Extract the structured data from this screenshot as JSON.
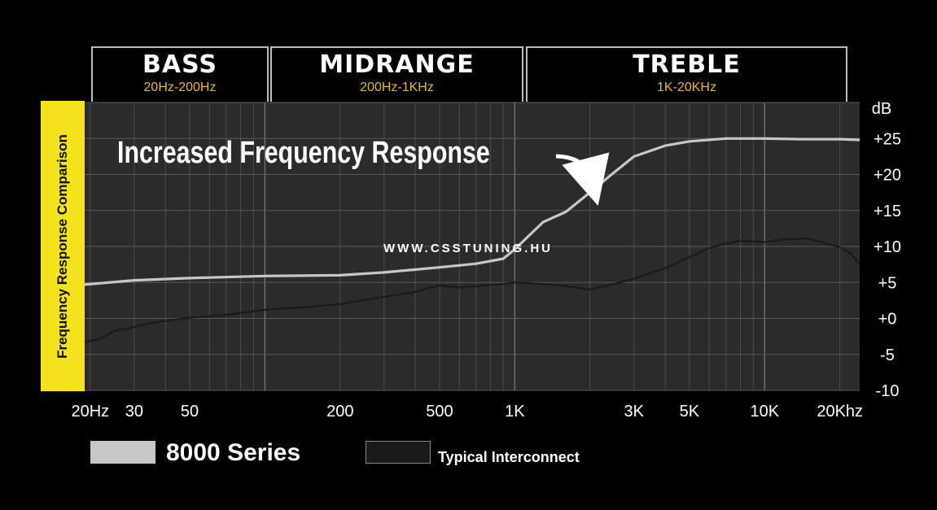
{
  "bands": [
    {
      "title": "BASS",
      "range": "20Hz-200Hz"
    },
    {
      "title": "MIDRANGE",
      "range": "200Hz-1KHz"
    },
    {
      "title": "TREBLE",
      "range": "1K-20KHz"
    }
  ],
  "side_label": "Frequency Response Comparison",
  "watermark": "WWW.CSSTUNING.HU",
  "colors": {
    "background": "#000000",
    "plot_bg": "#2b2b2b",
    "grid": "#5a5a5a",
    "series_8000": "#c7c7c7",
    "series_typical": "#1a1a1a",
    "side_label_bg": "#f3e21c",
    "band_range": "#e7b82c"
  },
  "chart_data": {
    "type": "line",
    "annotation": "Increased Frequency Response",
    "y_unit": "dB",
    "x_scale": "log",
    "xlim": [
      19,
      24000
    ],
    "ylim": [
      -10,
      30
    ],
    "grid": true,
    "xticks": [
      {
        "value": 20,
        "label": "20Hz"
      },
      {
        "value": 30,
        "label": "30"
      },
      {
        "value": 50,
        "label": "50"
      },
      {
        "value": 200,
        "label": "200"
      },
      {
        "value": 500,
        "label": "500"
      },
      {
        "value": 1000,
        "label": "1K"
      },
      {
        "value": 3000,
        "label": "3K"
      },
      {
        "value": 5000,
        "label": "5K"
      },
      {
        "value": 10000,
        "label": "10K"
      },
      {
        "value": 20000,
        "label": "20Khz"
      }
    ],
    "yticks": [
      {
        "value": 25,
        "label": "+25"
      },
      {
        "value": 20,
        "label": "+20"
      },
      {
        "value": 15,
        "label": "+15"
      },
      {
        "value": 10,
        "label": "+10"
      },
      {
        "value": 5,
        "label": "+5"
      },
      {
        "value": 0,
        "label": "+0"
      },
      {
        "value": -5,
        "label": "-5"
      },
      {
        "value": -10,
        "label": "-10"
      }
    ],
    "series": [
      {
        "name": "8000 Series",
        "x": [
          19,
          30,
          50,
          100,
          200,
          300,
          500,
          700,
          900,
          1000,
          1300,
          1600,
          2000,
          2500,
          3000,
          4000,
          5000,
          7000,
          10000,
          14000,
          20000,
          24000
        ],
        "y": [
          4.7,
          5.3,
          5.6,
          5.9,
          6.0,
          6.4,
          7.1,
          7.6,
          8.3,
          9.6,
          13.4,
          14.8,
          17.5,
          20.3,
          22.5,
          24.0,
          24.6,
          25.0,
          25.0,
          24.9,
          24.9,
          24.8
        ]
      },
      {
        "name": "Typical Interconnect",
        "x": [
          19,
          22,
          25,
          30,
          35,
          50,
          70,
          100,
          150,
          200,
          300,
          400,
          500,
          600,
          700,
          900,
          1000,
          1300,
          1600,
          2000,
          2500,
          3000,
          3500,
          4000,
          5000,
          6000,
          7000,
          8000,
          10000,
          12000,
          15000,
          18000,
          20000,
          22000,
          24000
        ],
        "y": [
          -3.3,
          -2.8,
          -1.7,
          -1.2,
          -0.6,
          0.1,
          0.5,
          1.2,
          1.6,
          2.0,
          3.0,
          3.7,
          4.6,
          4.3,
          4.5,
          4.8,
          5.0,
          4.8,
          4.5,
          4.0,
          4.8,
          5.5,
          6.3,
          7.0,
          8.5,
          9.8,
          10.4,
          10.8,
          10.6,
          11.0,
          11.1,
          10.3,
          9.9,
          9.1,
          7.5
        ]
      }
    ]
  },
  "legend": [
    {
      "label": "8000 Series"
    },
    {
      "label": "Typical Interconnect"
    }
  ]
}
